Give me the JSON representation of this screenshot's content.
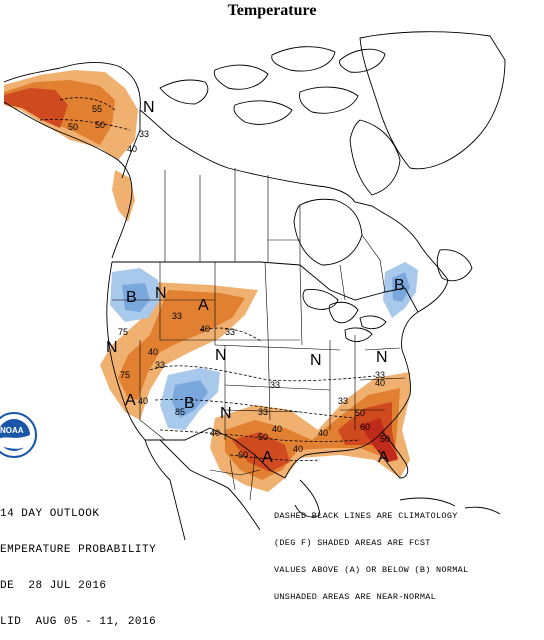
{
  "title": "Temperature",
  "colors": {
    "above_low": "#f0b070",
    "above_mid": "#e08030",
    "above_high": "#d04a20",
    "above_max": "#c02a1a",
    "below_low": "#a8c8ec",
    "below_mid": "#7aa8dc",
    "background": "#ffffff",
    "boundary": "#000000",
    "noaa_blue": "#1a56a8"
  },
  "map_labels": {
    "a1": "A",
    "a2": "A",
    "a3": "A",
    "a4": "A",
    "b1": "B",
    "b2": "B",
    "b3": "B",
    "n1": "N",
    "n2": "N",
    "n3": "N",
    "n4": "N",
    "n5": "N",
    "n6": "N",
    "n7": "N"
  },
  "contours": {
    "c55": "55",
    "c50a": "50",
    "c50b": "50",
    "c40a": "40",
    "c33a": "33",
    "c33b": "33",
    "c40b": "40",
    "c33c": "33",
    "c75": "75",
    "c40c": "40",
    "c33d": "33",
    "c40d": "40",
    "c75b": "75",
    "c85": "85",
    "c40e": "40",
    "c33e": "33",
    "c40f": "40",
    "c50c": "50",
    "c60": "60",
    "c50d": "50",
    "c60b": "60",
    "c40g": "40",
    "c33f": "33",
    "c50e": "50",
    "c40h": "40",
    "c33g": "33",
    "c40i": "40",
    "c33h": "33"
  },
  "caption_left": {
    "line1": "14 DAY OUTLOOK",
    "line2": "EMPERATURE PROBABILITY",
    "line3": "DE  28 JUL 2016",
    "line4": "LID  AUG 05 - 11, 2016"
  },
  "caption_right": {
    "line1": "DASHED BLACK LINES ARE CLIMATOLOGY",
    "line2": "(DEG F) SHADED AREAS ARE FCST",
    "line3": "VALUES ABOVE (A) OR BELOW (B) NORMAL",
    "line4": "UNSHADED AREAS ARE NEAR-NORMAL"
  },
  "logo": {
    "text": "NOAA"
  }
}
